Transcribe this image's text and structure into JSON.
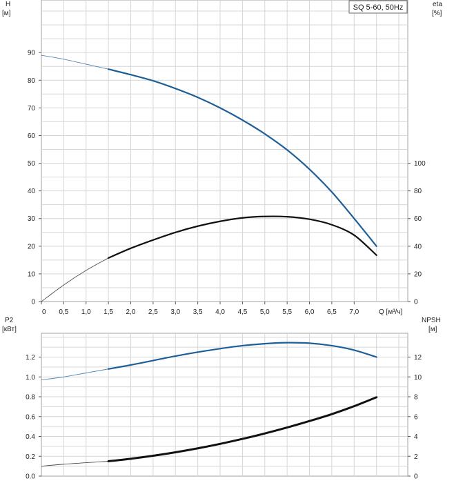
{
  "chart_data": [
    {
      "type": "line",
      "legend": "SQ 5-60, 50Hz",
      "legend_position": "top-right",
      "grid": true,
      "x_axis": {
        "label": "Q [м³/ч]",
        "range": [
          0,
          8.2
        ],
        "ticks": [
          "0",
          "0,5",
          "1,0",
          "1,5",
          "2,0",
          "2,5",
          "3,0",
          "3,5",
          "4,0",
          "4,5",
          "5,0",
          "5,5",
          "6,0",
          "6,5",
          "7,0"
        ],
        "tick_values": [
          0,
          0.5,
          1.0,
          1.5,
          2.0,
          2.5,
          3.0,
          3.5,
          4.0,
          4.5,
          5.0,
          5.5,
          6.0,
          6.5,
          7.0
        ]
      },
      "y_left": {
        "label_line1": "H",
        "label_line2": "[м]",
        "range": [
          0,
          109
        ],
        "ticks": [
          "0",
          "10",
          "20",
          "30",
          "40",
          "50",
          "60",
          "70",
          "80",
          "90"
        ],
        "tick_values": [
          0,
          10,
          20,
          30,
          40,
          50,
          60,
          70,
          80,
          90
        ]
      },
      "y_right": {
        "label_line1": "eta",
        "label_line2": "[%]",
        "range": [
          0,
          218
        ],
        "ticks": [
          "0",
          "20",
          "40",
          "60",
          "80",
          "100"
        ],
        "tick_values": [
          0,
          20,
          40,
          60,
          80,
          100
        ]
      },
      "series": [
        {
          "axis": "left",
          "color": "#1f5f99",
          "x": [
            0,
            0.5,
            1.0,
            1.5,
            2.0,
            2.5,
            3.0,
            3.5,
            4.0,
            4.5,
            5.0,
            5.5,
            6.0,
            6.5,
            7.0,
            7.5
          ],
          "y": [
            89,
            87.6,
            85.8,
            84,
            82,
            79.8,
            77,
            73.8,
            70,
            65.6,
            60.6,
            54.8,
            47.8,
            39.6,
            30,
            20
          ],
          "thin_until": 1.5
        },
        {
          "axis": "right",
          "color": "#111111",
          "x": [
            0,
            0.5,
            1.0,
            1.5,
            2.0,
            2.5,
            3.0,
            3.5,
            4.0,
            4.5,
            5.0,
            5.5,
            6.0,
            6.5,
            7.0,
            7.5
          ],
          "y": [
            0,
            12,
            22.5,
            31.5,
            38.5,
            44.5,
            50,
            54.5,
            58,
            60.5,
            61.5,
            61.3,
            59.5,
            55.5,
            48,
            33.5
          ],
          "thin_until": 1.5
        }
      ]
    },
    {
      "type": "line",
      "grid": true,
      "x_axis": {
        "range": [
          0,
          8.2
        ]
      },
      "y_left": {
        "label_line1": "P2",
        "label_line2": "[кВт]",
        "range": [
          0,
          1.44
        ],
        "ticks": [
          "0.0",
          "0.2",
          "0.4",
          "0.6",
          "0.8",
          "1.0",
          "1.2"
        ],
        "tick_values": [
          0,
          0.2,
          0.4,
          0.6,
          0.8,
          1.0,
          1.2
        ]
      },
      "y_right": {
        "label_line1": "NPSH",
        "label_line2": "[м]",
        "range": [
          0,
          14.4
        ],
        "ticks": [
          "0",
          "2",
          "4",
          "6",
          "8",
          "10",
          "12"
        ],
        "tick_values": [
          0,
          2,
          4,
          6,
          8,
          10,
          12
        ]
      },
      "series": [
        {
          "axis": "left",
          "color": "#1f5f99",
          "x": [
            0,
            0.5,
            1.0,
            1.5,
            2.0,
            2.5,
            3.0,
            3.5,
            4.0,
            4.5,
            5.0,
            5.5,
            6.0,
            6.5,
            7.0,
            7.5
          ],
          "y": [
            0.97,
            1.0,
            1.04,
            1.08,
            1.12,
            1.165,
            1.21,
            1.25,
            1.285,
            1.315,
            1.335,
            1.345,
            1.34,
            1.315,
            1.27,
            1.2
          ],
          "thin_until": 1.5
        },
        {
          "axis": "right",
          "color": "#111111",
          "x": [
            0,
            0.5,
            1.0,
            1.5,
            2.0,
            2.5,
            3.0,
            3.5,
            4.0,
            4.5,
            5.0,
            5.5,
            6.0,
            6.5,
            7.0,
            7.5
          ],
          "y": [
            1.0,
            1.2,
            1.35,
            1.5,
            1.75,
            2.05,
            2.4,
            2.8,
            3.25,
            3.75,
            4.3,
            4.9,
            5.55,
            6.25,
            7.05,
            7.95
          ],
          "thin_until": 1.5
        }
      ]
    }
  ]
}
